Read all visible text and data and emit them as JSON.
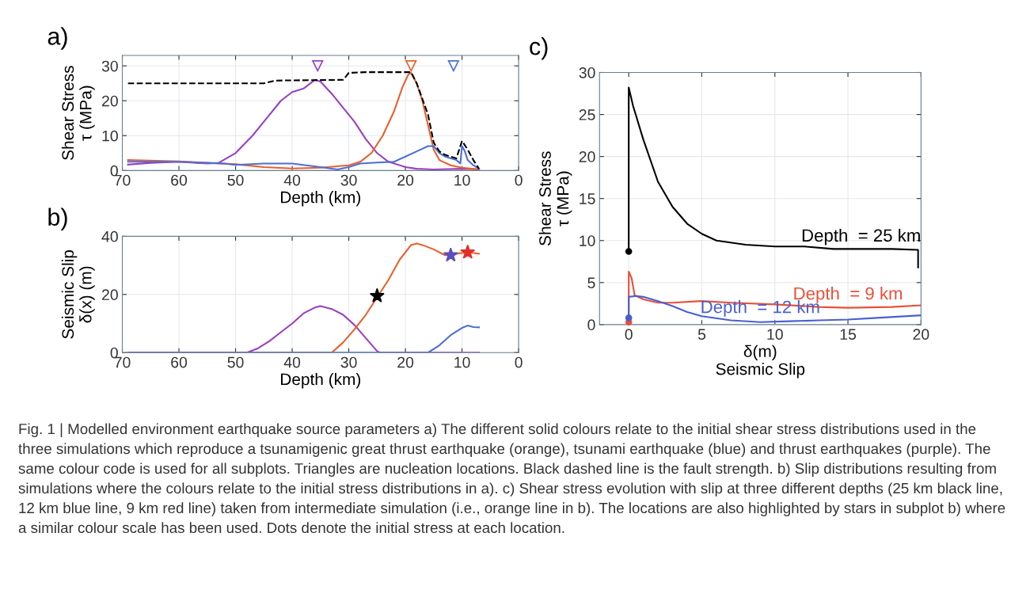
{
  "chart_data": [
    {
      "type": "line",
      "title": "a)",
      "ylabel": "Shear Stress\nτ (MPa)",
      "xlabel": "Depth (km)",
      "xlim": [
        70,
        0
      ],
      "xticks": [
        70,
        60,
        50,
        40,
        30,
        20,
        10,
        0
      ],
      "ylim": [
        0,
        33
      ],
      "yticks": [
        0,
        10,
        20,
        30
      ],
      "grid": true,
      "series": [
        {
          "color": "#9b3fbf",
          "x": [
            69,
            65,
            60,
            55,
            53,
            50,
            47,
            45,
            42,
            40,
            38,
            36,
            35,
            33,
            31,
            29,
            27,
            25,
            23,
            20,
            18,
            15,
            10,
            7
          ],
          "values": [
            1.7,
            2.2,
            2.5,
            2,
            2.2,
            5,
            10,
            14,
            20,
            22.5,
            23.5,
            26,
            25.5,
            22,
            18,
            14,
            9,
            5,
            2.5,
            1,
            0.5,
            0.3,
            0.5,
            0.3
          ]
        },
        {
          "color": "#e8602c",
          "x": [
            69,
            60,
            50,
            45,
            40,
            35,
            30,
            28,
            26,
            24,
            22,
            20.5,
            19.5,
            19,
            18,
            17,
            16,
            15,
            14,
            12,
            10,
            7
          ],
          "values": [
            3,
            2.6,
            1.8,
            1,
            0.6,
            0.8,
            1.5,
            2.5,
            5,
            10,
            17,
            24,
            27.5,
            28,
            25,
            20,
            13,
            6,
            3,
            1.5,
            0.8,
            0.3
          ]
        },
        {
          "color": "#4a6fd6",
          "x": [
            69,
            60,
            52,
            50,
            45,
            40,
            35,
            32,
            30,
            28,
            25,
            22,
            20,
            18,
            16,
            15,
            14,
            13,
            11,
            10.3,
            10,
            9.5,
            9,
            8,
            7
          ],
          "values": [
            2.5,
            2.5,
            2,
            1.6,
            2,
            2,
            1,
            0.3,
            1,
            2,
            2.3,
            2.5,
            4,
            5.5,
            7,
            7,
            5,
            4,
            3,
            2,
            7,
            5.5,
            3,
            1.5,
            0.5
          ]
        },
        {
          "color": "#000000",
          "line_style": "dashed",
          "x": [
            69,
            45,
            43,
            31,
            30,
            27,
            19,
            18,
            16,
            15,
            14,
            13,
            11,
            10,
            9,
            8,
            7
          ],
          "values": [
            25,
            25,
            25.8,
            26,
            28,
            28.2,
            28.2,
            25,
            16,
            8,
            5.5,
            4.5,
            3.5,
            8.5,
            6,
            3,
            0.5
          ]
        },
        {
          "type": "scatter",
          "marker": "triangle",
          "color": "#9b3fbf",
          "x": [
            35.5
          ],
          "values": [
            30
          ]
        },
        {
          "type": "scatter",
          "marker": "triangle",
          "color": "#e8602c",
          "x": [
            19
          ],
          "values": [
            30
          ]
        },
        {
          "type": "scatter",
          "marker": "triangle",
          "color": "#4a6fd6",
          "x": [
            11.5
          ],
          "values": [
            30
          ]
        }
      ],
      "annotations": [
        "Fig. 1 | Modelled environment earthquake source parameters a) The different solid colours relate to the initial shear stress distributions used in the three simulations which reproduce a tsunamigenic great thrust earthquake (orange), tsunami earthquake (blue) and thrust earthquakes (purple). The same colour code is used for all subplots. Triangles are nucleation locations. Black dashed line is the fault strength. b) Slip distributions resulting from simulations where the colours relate to the initial stress distributions in a). c) Shear stress evolution with slip at three different depths (25 km black line, 12 km blue line, 9 km red line) taken from intermediate simulation (i.e., orange line in b). The locations are also highlighted by stars in subplot b) where a similar colour scale has been used. Dots denote the initial stress at each location."
      ]
    },
    {
      "type": "line",
      "title": "b)",
      "ylabel": "Seismic Slip\nδ(x) (m)",
      "xlabel": "Depth (km)",
      "xlim": [
        70,
        0
      ],
      "xticks": [
        70,
        60,
        50,
        40,
        30,
        20,
        10,
        0
      ],
      "ylim": [
        0,
        40
      ],
      "yticks": [
        0,
        20,
        40
      ],
      "grid": true,
      "series": [
        {
          "color": "#9b3fbf",
          "x": [
            69,
            48,
            46,
            44,
            42,
            40,
            38,
            36,
            35,
            33,
            31,
            29,
            27,
            25,
            24.5,
            7
          ],
          "values": [
            0,
            0,
            1.5,
            4,
            7,
            10,
            13.5,
            15.5,
            16,
            15,
            13,
            9.5,
            5,
            0.5,
            0,
            0
          ]
        },
        {
          "color": "#e8602c",
          "x": [
            69,
            33,
            31,
            29,
            27,
            25,
            23,
            21,
            19,
            18,
            17,
            15,
            13,
            11,
            9,
            7
          ],
          "values": [
            0,
            0,
            3.5,
            8,
            13,
            19,
            25,
            32,
            37,
            37.5,
            37,
            35.5,
            33.5,
            34,
            34.5,
            34
          ]
        },
        {
          "color": "#4a6fd6",
          "x": [
            69,
            16,
            14,
            12,
            10,
            9,
            8,
            7
          ],
          "values": [
            0,
            0,
            2.5,
            6,
            8.5,
            9.3,
            8.8,
            8.7
          ]
        },
        {
          "type": "scatter",
          "marker": "star",
          "color": "#000000",
          "x": [
            25
          ],
          "values": [
            19.5
          ]
        },
        {
          "type": "scatter",
          "marker": "star",
          "color": "#5b4fc0",
          "x": [
            12
          ],
          "values": [
            33.5
          ]
        },
        {
          "type": "scatter",
          "marker": "star",
          "color": "#e0302a",
          "x": [
            9
          ],
          "values": [
            34.5
          ]
        }
      ]
    },
    {
      "type": "line",
      "title": "c)",
      "ylabel": "Shear Stress\nτ (MPa)",
      "xlabel": "δ(m)\nSeismic Slip",
      "xlim": [
        -2,
        20
      ],
      "xticks": [
        0,
        5,
        10,
        15,
        20
      ],
      "ylim": [
        0,
        30
      ],
      "yticks": [
        0,
        5,
        10,
        15,
        20,
        25,
        30
      ],
      "grid": true,
      "series": [
        {
          "name": "Depth  = 25 km",
          "color": "#000000",
          "x": [
            0,
            0,
            0.3,
            1,
            2,
            3,
            4,
            5,
            6,
            8,
            10,
            12,
            14,
            16,
            18,
            19.8,
            19.8
          ],
          "values": [
            8.7,
            28.2,
            26,
            22,
            17,
            14,
            12,
            10.8,
            10,
            9.5,
            9.3,
            9.3,
            9,
            9,
            9,
            8.9,
            6.8
          ]
        },
        {
          "name": "Depth  = 9 km",
          "color": "#e8503a",
          "x": [
            0,
            0,
            0.2,
            0.4,
            1,
            2,
            3,
            5,
            7,
            10,
            13,
            15,
            18,
            20
          ],
          "values": [
            0.3,
            6.3,
            5.5,
            3.5,
            3,
            2.6,
            2.6,
            2.8,
            2.6,
            2.4,
            2.1,
            2,
            2.1,
            2.3
          ]
        },
        {
          "name": "Depth  = 12 km",
          "color": "#4a5fd0",
          "x": [
            0,
            0,
            0.5,
            1,
            2,
            3,
            4,
            5,
            7,
            9,
            11,
            13,
            15,
            17,
            20
          ],
          "values": [
            0.8,
            3.3,
            3.4,
            3.3,
            2.8,
            2.2,
            1.5,
            1,
            0.5,
            0.3,
            0.4,
            0.5,
            0.6,
            0.8,
            1.1
          ]
        },
        {
          "type": "scatter",
          "marker": "circle",
          "color": "#000000",
          "x": [
            0
          ],
          "values": [
            8.7
          ]
        },
        {
          "type": "scatter",
          "marker": "circle",
          "color": "#e8503a",
          "x": [
            0
          ],
          "values": [
            0.3
          ]
        },
        {
          "type": "scatter",
          "marker": "circle",
          "color": "#4a5fd0",
          "x": [
            0
          ],
          "values": [
            0.8
          ]
        }
      ]
    }
  ]
}
